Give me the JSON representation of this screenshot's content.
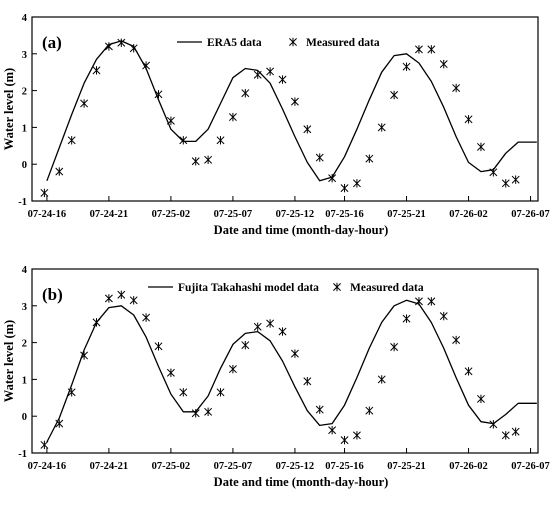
{
  "chart_data": [
    {
      "type": "line",
      "panel_label": "(a)",
      "xlabel": "Date and time (month-day-hour)",
      "ylabel": "Water level (m)",
      "ylim": [
        -1,
        4
      ],
      "yticks": [
        "-1",
        "0",
        "1",
        "2",
        "3",
        "4"
      ],
      "x_tick_labels": [
        "07-24-16",
        "07-24-21",
        "07-25-02",
        "07-25-07",
        "07-25-12",
        "07-25-16",
        "07-25-21",
        "07-26-02",
        "07-26-07"
      ],
      "x_unit_hours": [
        0,
        5,
        10,
        15,
        20,
        24,
        29,
        34,
        39
      ],
      "legend": {
        "placement": "top-center",
        "line_label": "ERA5 data",
        "marker_label": "Measured data"
      },
      "series": [
        {
          "name": "ERA5 data",
          "style": "line",
          "x": [
            0,
            1,
            2,
            3,
            4,
            5,
            6,
            7,
            8,
            9,
            10,
            11,
            12,
            13,
            14,
            15,
            16,
            17,
            18,
            19,
            20,
            21,
            22,
            23,
            24,
            25,
            26,
            27,
            28,
            29,
            30,
            31,
            32,
            33,
            34,
            35,
            36,
            37,
            38,
            39,
            39.5
          ],
          "y": [
            -0.45,
            0.45,
            1.35,
            2.2,
            2.85,
            3.25,
            3.35,
            3.2,
            2.6,
            1.75,
            0.95,
            0.62,
            0.62,
            0.95,
            1.65,
            2.35,
            2.6,
            2.55,
            2.2,
            1.5,
            0.75,
            0.05,
            -0.45,
            -0.35,
            0.2,
            0.95,
            1.75,
            2.5,
            2.95,
            3.0,
            2.75,
            2.25,
            1.55,
            0.75,
            0.05,
            -0.2,
            -0.15,
            0.3,
            0.6,
            0.6,
            0.6
          ]
        },
        {
          "name": "Measured data",
          "style": "marker",
          "x": [
            -0.2,
            1,
            2,
            3,
            4,
            5,
            6,
            7,
            8,
            9,
            10,
            11,
            12,
            13,
            14,
            15,
            16,
            17,
            18,
            19,
            20,
            21,
            22,
            23,
            24,
            25,
            26,
            27,
            28,
            29,
            30,
            31,
            32,
            33,
            34,
            35,
            36,
            37,
            37.8
          ],
          "y": [
            -0.78,
            -0.2,
            0.65,
            1.65,
            2.55,
            3.2,
            3.3,
            3.15,
            2.68,
            1.9,
            1.18,
            0.65,
            0.08,
            0.12,
            0.65,
            1.28,
            1.93,
            2.43,
            2.52,
            2.3,
            1.7,
            0.95,
            0.18,
            -0.38,
            -0.65,
            -0.52,
            0.15,
            1.0,
            1.88,
            2.65,
            3.12,
            3.12,
            2.72,
            2.07,
            1.22,
            0.47,
            -0.22,
            -0.52,
            -0.42
          ]
        }
      ]
    },
    {
      "type": "line",
      "panel_label": "(b)",
      "xlabel": "Date and time (month-day-hour)",
      "ylabel": "Water level (m)",
      "ylim": [
        -1,
        4
      ],
      "yticks": [
        "-1",
        "0",
        "1",
        "2",
        "3",
        "4"
      ],
      "x_tick_labels": [
        "07-24-16",
        "07-24-21",
        "07-25-02",
        "07-25-07",
        "07-25-12",
        "07-25-16",
        "07-25-21",
        "07-26-02",
        "07-26-07"
      ],
      "x_unit_hours": [
        0,
        5,
        10,
        15,
        20,
        24,
        29,
        34,
        39
      ],
      "legend": {
        "placement": "top-center",
        "line_label": "Fujita Takahashi model data",
        "marker_label": "Measured data"
      },
      "series": [
        {
          "name": "Fujita Takahashi model data",
          "style": "line",
          "x": [
            0,
            1,
            2,
            3,
            4,
            5,
            6,
            7,
            8,
            9,
            10,
            11,
            12,
            13,
            14,
            15,
            16,
            17,
            18,
            19,
            20,
            21,
            22,
            23,
            24,
            25,
            26,
            27,
            28,
            29,
            30,
            31,
            32,
            33,
            34,
            35,
            36,
            37,
            38,
            39,
            39.5
          ],
          "y": [
            -0.7,
            -0.05,
            0.85,
            1.8,
            2.55,
            2.95,
            3.0,
            2.75,
            2.15,
            1.35,
            0.6,
            0.12,
            0.12,
            0.55,
            1.3,
            1.95,
            2.25,
            2.3,
            2.05,
            1.5,
            0.8,
            0.15,
            -0.25,
            -0.2,
            0.3,
            1.05,
            1.85,
            2.55,
            3.0,
            3.15,
            3.05,
            2.55,
            1.85,
            1.05,
            0.3,
            -0.15,
            -0.2,
            0.05,
            0.35,
            0.35,
            0.35
          ]
        },
        {
          "name": "Measured data",
          "style": "marker",
          "x": [
            -0.2,
            1,
            2,
            3,
            4,
            5,
            6,
            7,
            8,
            9,
            10,
            11,
            12,
            13,
            14,
            15,
            16,
            17,
            18,
            19,
            20,
            21,
            22,
            23,
            24,
            25,
            26,
            27,
            28,
            29,
            30,
            31,
            32,
            33,
            34,
            35,
            36,
            37,
            37.8
          ],
          "y": [
            -0.78,
            -0.2,
            0.65,
            1.65,
            2.55,
            3.2,
            3.3,
            3.15,
            2.68,
            1.9,
            1.18,
            0.65,
            0.08,
            0.12,
            0.65,
            1.28,
            1.93,
            2.43,
            2.52,
            2.3,
            1.7,
            0.95,
            0.18,
            -0.38,
            -0.65,
            -0.52,
            0.15,
            1.0,
            1.88,
            2.65,
            3.12,
            3.12,
            2.72,
            2.07,
            1.22,
            0.47,
            -0.22,
            -0.52,
            -0.42
          ]
        }
      ]
    }
  ]
}
